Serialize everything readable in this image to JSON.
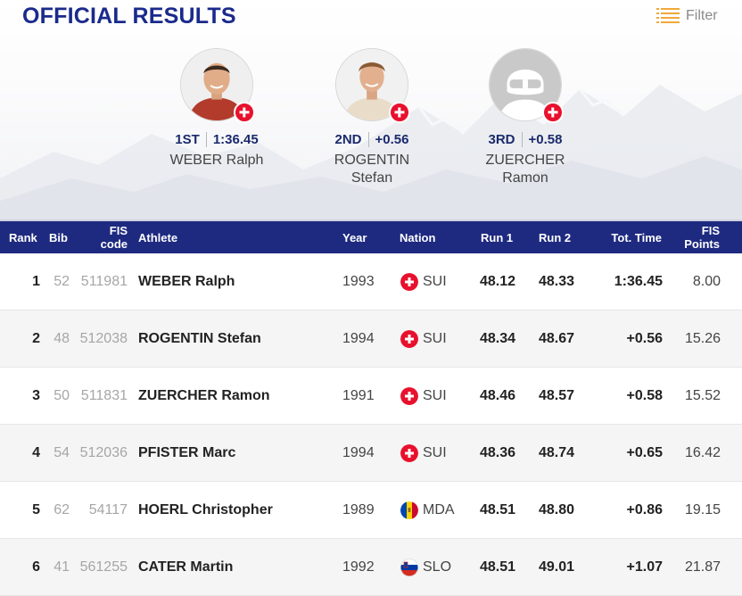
{
  "header": {
    "title": "OFFICIAL RESULTS",
    "filter_label": "Filter",
    "filter_icon": "filter-list-icon"
  },
  "podium": [
    {
      "place": "1ST",
      "result": "1:36.45",
      "name_line1": "WEBER Ralph",
      "name_line2": "",
      "nation_flag": "sui-flag-icon",
      "photo": "athlete-photo"
    },
    {
      "place": "2ND",
      "result": "+0.56",
      "name_line1": "ROGENTIN",
      "name_line2": "Stefan",
      "nation_flag": "sui-flag-icon",
      "photo": "athlete-photo"
    },
    {
      "place": "3RD",
      "result": "+0.58",
      "name_line1": "ZUERCHER",
      "name_line2": "Ramon",
      "nation_flag": "sui-flag-icon",
      "photo": "placeholder-helmet-avatar"
    }
  ],
  "table": {
    "columns": {
      "rank": "Rank",
      "bib": "Bib",
      "fis_code_1": "FIS",
      "fis_code_2": "code",
      "athlete": "Athlete",
      "year": "Year",
      "nation": "Nation",
      "run1": "Run 1",
      "run2": "Run 2",
      "tot_time": "Tot. Time",
      "fis_points_1": "FIS",
      "fis_points_2": "Points"
    },
    "rows": [
      {
        "rank": "1",
        "bib": "52",
        "fis_code": "511981",
        "athlete": "WEBER Ralph",
        "year": "1993",
        "nation": "SUI",
        "run1": "48.12",
        "run2": "48.33",
        "tot_time": "1:36.45",
        "fis_points": "8.00"
      },
      {
        "rank": "2",
        "bib": "48",
        "fis_code": "512038",
        "athlete": "ROGENTIN Stefan",
        "year": "1994",
        "nation": "SUI",
        "run1": "48.34",
        "run2": "48.67",
        "tot_time": "+0.56",
        "fis_points": "15.26"
      },
      {
        "rank": "3",
        "bib": "50",
        "fis_code": "511831",
        "athlete": "ZUERCHER Ramon",
        "year": "1991",
        "nation": "SUI",
        "run1": "48.46",
        "run2": "48.57",
        "tot_time": "+0.58",
        "fis_points": "15.52"
      },
      {
        "rank": "4",
        "bib": "54",
        "fis_code": "512036",
        "athlete": "PFISTER Marc",
        "year": "1994",
        "nation": "SUI",
        "run1": "48.36",
        "run2": "48.74",
        "tot_time": "+0.65",
        "fis_points": "16.42"
      },
      {
        "rank": "5",
        "bib": "62",
        "fis_code": "54117",
        "athlete": "HOERL Christopher",
        "year": "1989",
        "nation": "MDA",
        "run1": "48.51",
        "run2": "48.80",
        "tot_time": "+0.86",
        "fis_points": "19.15"
      },
      {
        "rank": "6",
        "bib": "41",
        "fis_code": "561255",
        "athlete": "CATER Martin",
        "year": "1992",
        "nation": "SLO",
        "run1": "48.51",
        "run2": "49.01",
        "tot_time": "+1.07",
        "fis_points": "21.87"
      }
    ]
  },
  "colors": {
    "brand_blue": "#1a2a8c",
    "header_bg": "#1e2a80",
    "sui_red": "#e8112d"
  }
}
